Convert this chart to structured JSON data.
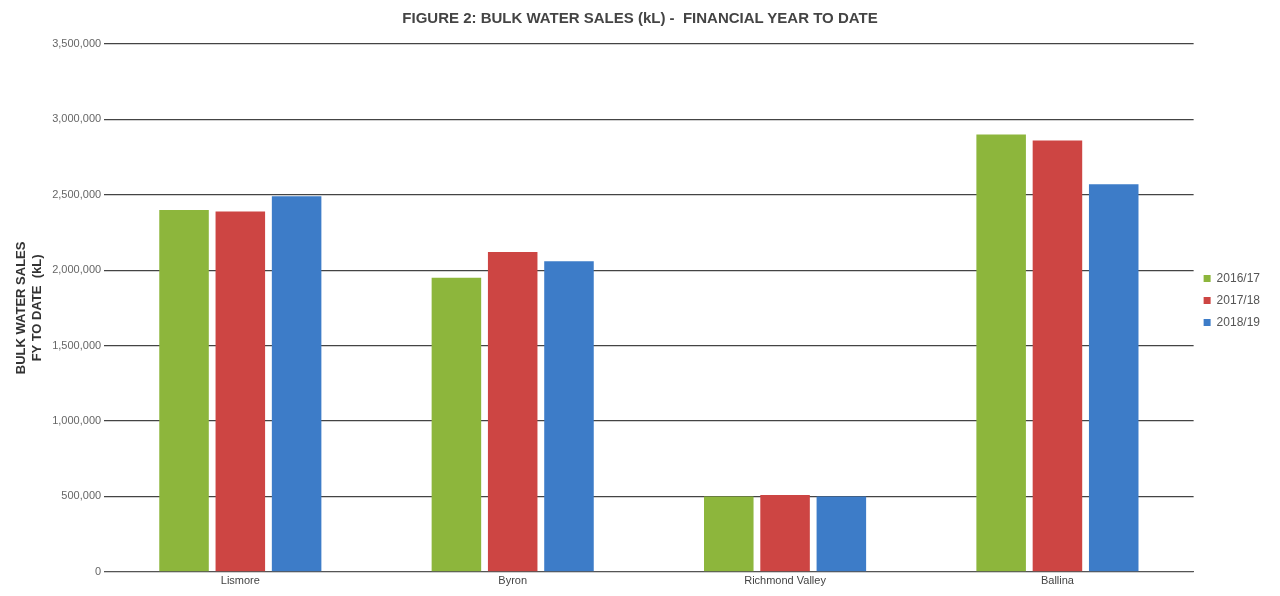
{
  "chart_data": {
    "type": "bar",
    "title": "FIGURE 2: BULK WATER SALES (kL) -  FINANCIAL YEAR TO DATE",
    "ylabel": "BULK WATER SALES\nFY TO DATE  (kL)",
    "categories": [
      "Lismore",
      "Byron",
      "Richmond Valley",
      "Ballina"
    ],
    "series": [
      {
        "name": "2016/17",
        "color": "#8db63c",
        "values": [
          2400000,
          1950000,
          500000,
          2900000
        ]
      },
      {
        "name": "2017/18",
        "color": "#cd4543",
        "values": [
          2390000,
          2120000,
          510000,
          2860000
        ]
      },
      {
        "name": "2018/19",
        "color": "#3d7cc8",
        "values": [
          2490000,
          2060000,
          500000,
          2570000
        ]
      }
    ],
    "ylim": [
      0,
      3500000
    ],
    "yticks": [
      {
        "value": 0,
        "label": "0"
      },
      {
        "value": 500000,
        "label": "500,000"
      },
      {
        "value": 1000000,
        "label": "1,000,000"
      },
      {
        "value": 1500000,
        "label": "1,500,000"
      },
      {
        "value": 2000000,
        "label": "2,000,000"
      },
      {
        "value": 2500000,
        "label": "2,500,000"
      },
      {
        "value": 3000000,
        "label": "3,000,000"
      },
      {
        "value": 3500000,
        "label": "3,500,000"
      }
    ],
    "grid": "y",
    "legend": "right"
  }
}
